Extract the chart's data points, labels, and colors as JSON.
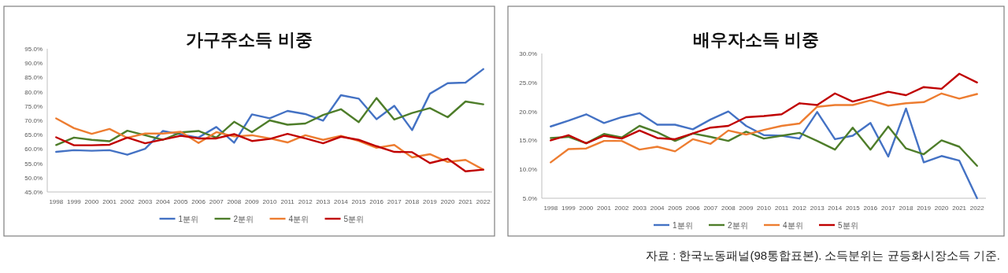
{
  "chart_data": [
    {
      "type": "line",
      "title": "가구주소득 비중",
      "categories": [
        "1998",
        "1999",
        "2000",
        "2001",
        "2002",
        "2003",
        "2004",
        "2005",
        "2006",
        "2007",
        "2008",
        "2009",
        "2010",
        "2011",
        "2012",
        "2013",
        "2014",
        "2015",
        "2016",
        "2017",
        "2018",
        "2019",
        "2020",
        "2021",
        "2022"
      ],
      "ylim": [
        45,
        95
      ],
      "yticks": [
        {
          "value": 45,
          "label": "45.0%"
        },
        {
          "value": 50,
          "label": "50.0%"
        },
        {
          "value": 55,
          "label": "55.0%"
        },
        {
          "value": 60,
          "label": "60.0%"
        },
        {
          "value": 65,
          "label": "65.0%"
        },
        {
          "value": 70,
          "label": "70.0%"
        },
        {
          "value": 75,
          "label": "75.0%"
        },
        {
          "value": 80,
          "label": "80.0%"
        },
        {
          "value": 85,
          "label": "85.0%"
        },
        {
          "value": 90,
          "label": "90.0%"
        },
        {
          "value": 95,
          "label": "95.0%"
        }
      ],
      "legend": "bottom",
      "series": [
        {
          "name": "1분위",
          "color": "#4472c4",
          "values": [
            59.0,
            59.6,
            59.4,
            59.6,
            58.0,
            60.1,
            66.3,
            65.1,
            64.0,
            67.7,
            62.2,
            72.1,
            70.7,
            73.3,
            72.2,
            69.9,
            78.8,
            77.6,
            70.4,
            75.1,
            66.6,
            79.3,
            83.0,
            83.2,
            87.9
          ]
        },
        {
          "name": "2분위",
          "color": "#4e7d2a",
          "values": [
            61.4,
            64.0,
            63.2,
            62.7,
            66.4,
            64.8,
            63.2,
            65.8,
            66.3,
            64.0,
            69.5,
            65.9,
            70.0,
            68.5,
            68.9,
            71.9,
            73.9,
            69.4,
            77.8,
            70.3,
            72.6,
            74.3,
            71.1,
            76.6,
            75.6
          ]
        },
        {
          "name": "4분위",
          "color": "#ed7d31",
          "values": [
            70.7,
            67.3,
            65.3,
            67.0,
            63.9,
            65.4,
            65.4,
            66.0,
            62.1,
            65.9,
            64.4,
            64.8,
            63.7,
            62.3,
            64.8,
            63.2,
            64.6,
            62.8,
            60.4,
            61.4,
            57.1,
            58.2,
            55.5,
            56.2,
            52.8
          ]
        },
        {
          "name": "5분위",
          "color": "#c00000",
          "values": [
            64.1,
            61.3,
            61.3,
            61.5,
            64.0,
            62.0,
            63.3,
            64.6,
            63.7,
            63.7,
            65.2,
            62.8,
            63.5,
            65.3,
            63.7,
            62.0,
            64.3,
            63.2,
            61.0,
            59.0,
            58.9,
            55.1,
            56.6,
            52.2,
            52.8
          ]
        }
      ]
    },
    {
      "type": "line",
      "title": "배우자소득 비중",
      "categories": [
        "1998",
        "1999",
        "2000",
        "2001",
        "2002",
        "2003",
        "2004",
        "2005",
        "2006",
        "2007",
        "2008",
        "2009",
        "2010",
        "2011",
        "2012",
        "2013",
        "2014",
        "2015",
        "2016",
        "2017",
        "2018",
        "2019",
        "2020",
        "2021",
        "2022"
      ],
      "ylim": [
        5,
        30
      ],
      "yticks": [
        {
          "value": 5,
          "label": "5.0%"
        },
        {
          "value": 10,
          "label": "10.0%"
        },
        {
          "value": 15,
          "label": "15.0%"
        },
        {
          "value": 20,
          "label": "20.0%"
        },
        {
          "value": 25,
          "label": "25.0%"
        },
        {
          "value": 30,
          "label": "30.0%"
        }
      ],
      "legend": "bottom",
      "annotations": [
        "자료 : 한국노동패널(98통합표본). 소득분위는 균등화시장소득 기준."
      ],
      "series": [
        {
          "name": "1분위",
          "color": "#4472c4",
          "values": [
            17.4,
            18.4,
            19.5,
            18.0,
            19.0,
            19.7,
            17.7,
            17.7,
            16.9,
            18.6,
            20.0,
            17.5,
            15.9,
            15.8,
            15.3,
            19.9,
            15.2,
            15.8,
            18.0,
            12.2,
            20.5,
            11.2,
            12.3,
            11.5,
            5.0
          ]
        },
        {
          "name": "2분위",
          "color": "#4e7d2a",
          "values": [
            15.4,
            15.6,
            14.5,
            16.1,
            15.5,
            17.5,
            16.4,
            14.9,
            16.2,
            15.6,
            14.9,
            16.5,
            15.3,
            15.8,
            16.3,
            14.9,
            13.4,
            17.2,
            13.4,
            17.4,
            13.6,
            12.6,
            15.0,
            13.9,
            10.6
          ]
        },
        {
          "name": "4분위",
          "color": "#ed7d31",
          "values": [
            11.2,
            13.5,
            13.6,
            14.9,
            14.9,
            13.4,
            13.9,
            13.1,
            15.2,
            14.4,
            16.7,
            16.0,
            16.8,
            17.5,
            17.9,
            20.8,
            21.1,
            21.1,
            21.9,
            21.0,
            21.4,
            21.6,
            23.1,
            22.2,
            23.0
          ]
        },
        {
          "name": "5분위",
          "color": "#c00000",
          "values": [
            15.0,
            15.9,
            14.5,
            15.8,
            15.3,
            16.7,
            15.4,
            15.2,
            16.2,
            17.2,
            17.5,
            19.0,
            19.2,
            19.5,
            21.4,
            21.1,
            23.1,
            21.7,
            22.5,
            23.4,
            22.8,
            24.2,
            23.9,
            26.5,
            25.0
          ]
        }
      ]
    }
  ]
}
